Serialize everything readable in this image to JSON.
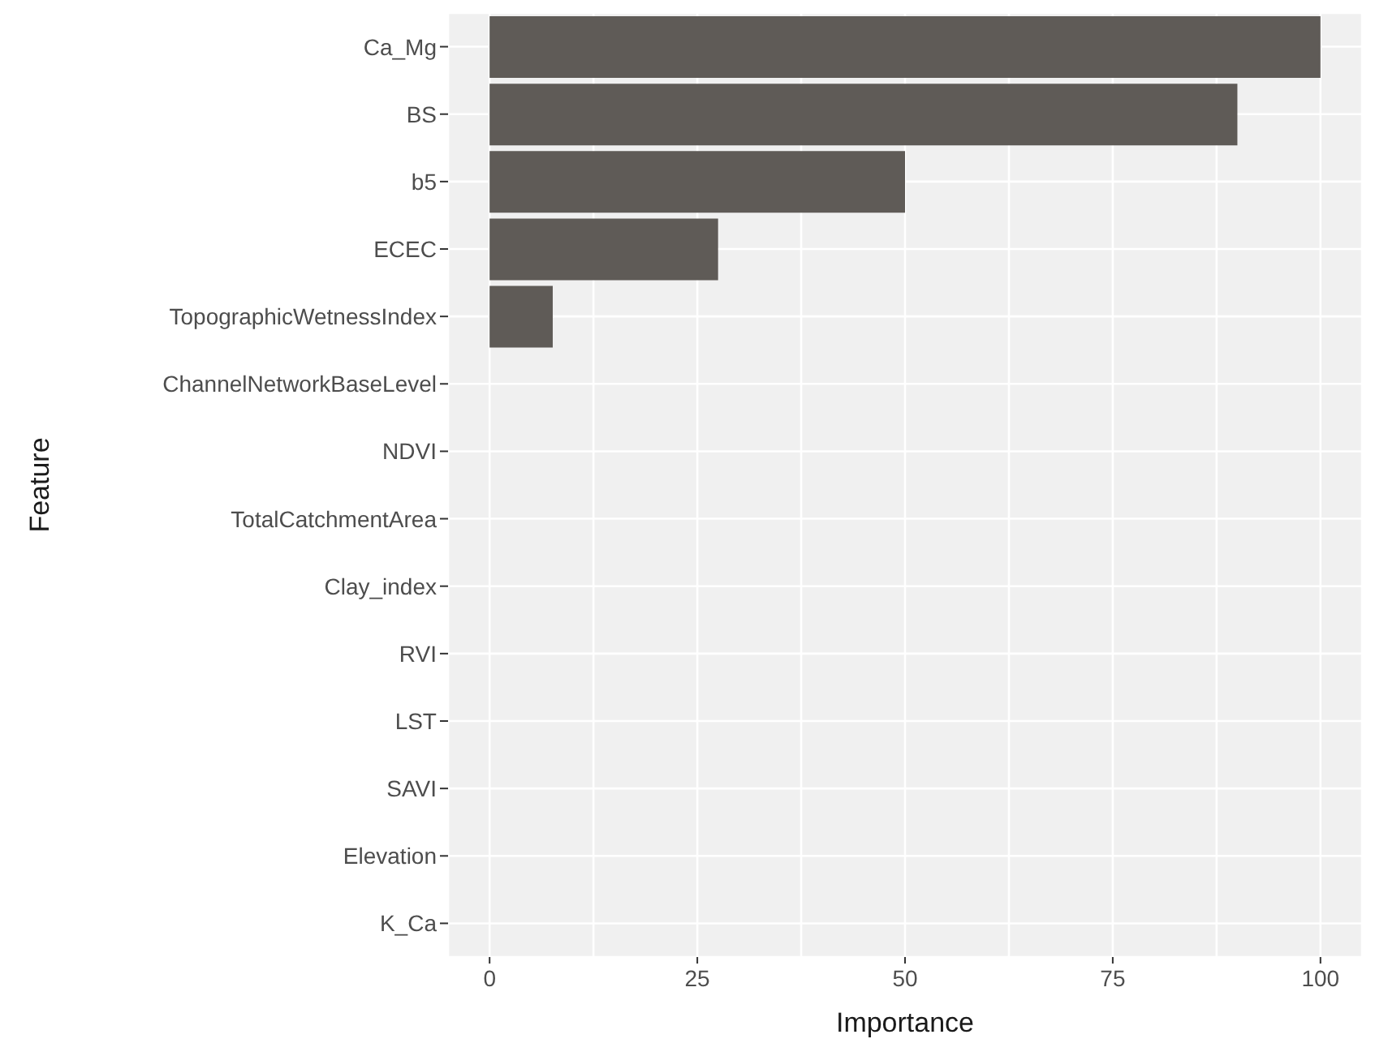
{
  "chart_data": {
    "type": "bar",
    "orientation": "horizontal",
    "xlabel": "Importance",
    "ylabel": "Feature",
    "categories": [
      "Ca_Mg",
      "BS",
      "b5",
      "ECEC",
      "TopographicWetnessIndex",
      "ChannelNetworkBaseLevel",
      "NDVI",
      "TotalCatchmentArea",
      "Clay_index",
      "RVI",
      "LST",
      "SAVI",
      "Elevation",
      "K_Ca"
    ],
    "values": [
      100,
      90,
      50,
      27.5,
      7.6,
      0,
      0,
      0,
      0,
      0,
      0,
      0,
      0,
      0
    ],
    "color": "#5f5b57",
    "xlim": [
      -5,
      105
    ],
    "xticks": [
      0,
      {
        "value": 12.5,
        "label": null
      },
      25,
      {
        "value": 37.5,
        "label": null
      },
      50,
      {
        "value": 62.5,
        "label": null
      },
      75,
      {
        "value": 87.5,
        "label": null
      },
      100
    ],
    "grid": true
  }
}
